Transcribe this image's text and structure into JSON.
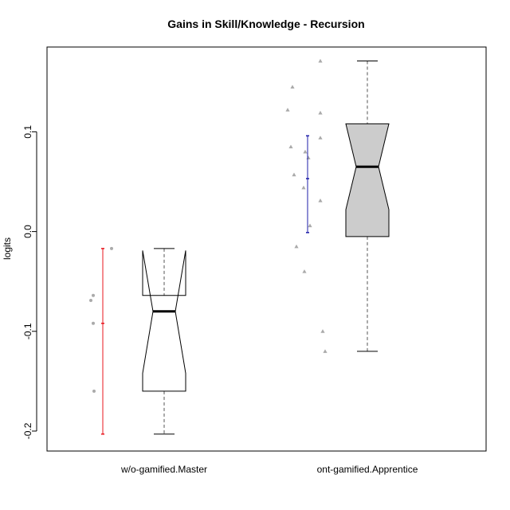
{
  "chart_data": {
    "type": "boxplot",
    "title": "Gains in Skill/Knowledge - Recursion",
    "xlabel": "",
    "ylabel": "logits",
    "ylim": [
      -0.22,
      0.185
    ],
    "yticks": [
      -0.2,
      -0.1,
      0.0,
      0.1
    ],
    "ytick_labels": [
      "-0.2",
      "-0.1",
      "0.0",
      "0.1"
    ],
    "categories": [
      "w/o-gamified.Master",
      "ont-gamified.Apprentice"
    ],
    "grid": false,
    "legend": "none",
    "boxes": [
      {
        "category": "w/o-gamified.Master",
        "whisker_low": -0.203,
        "q1": -0.16,
        "median": -0.08,
        "q3": -0.064,
        "whisker_high": -0.017,
        "notch_low": -0.142,
        "notch_high": -0.019,
        "fill": "#ffffff",
        "mean": -0.092,
        "ci_low": -0.203,
        "ci_high": -0.017,
        "ci_color": "#e8141c",
        "points": [
          -0.017,
          -0.064,
          -0.069,
          -0.092,
          -0.16
        ]
      },
      {
        "category": "ont-gamified.Apprentice",
        "whisker_low": -0.12,
        "q1": -0.005,
        "median": 0.065,
        "q3": 0.108,
        "whisker_high": 0.171,
        "notch_low": 0.022,
        "notch_high": 0.108,
        "fill": "#cccccc",
        "mean": 0.053,
        "ci_low": -0.001,
        "ci_high": 0.096,
        "ci_color": "#1c1ca8",
        "points": [
          0.171,
          0.145,
          0.122,
          0.119,
          0.094,
          0.085,
          0.08,
          0.074,
          0.057,
          0.044,
          0.031,
          0.006,
          -0.015,
          -0.04,
          -0.1,
          -0.12
        ]
      }
    ],
    "colors": {
      "points": "#aaaaaa",
      "median": "#000000",
      "whisker": "#555555",
      "frame": "#000000"
    }
  }
}
